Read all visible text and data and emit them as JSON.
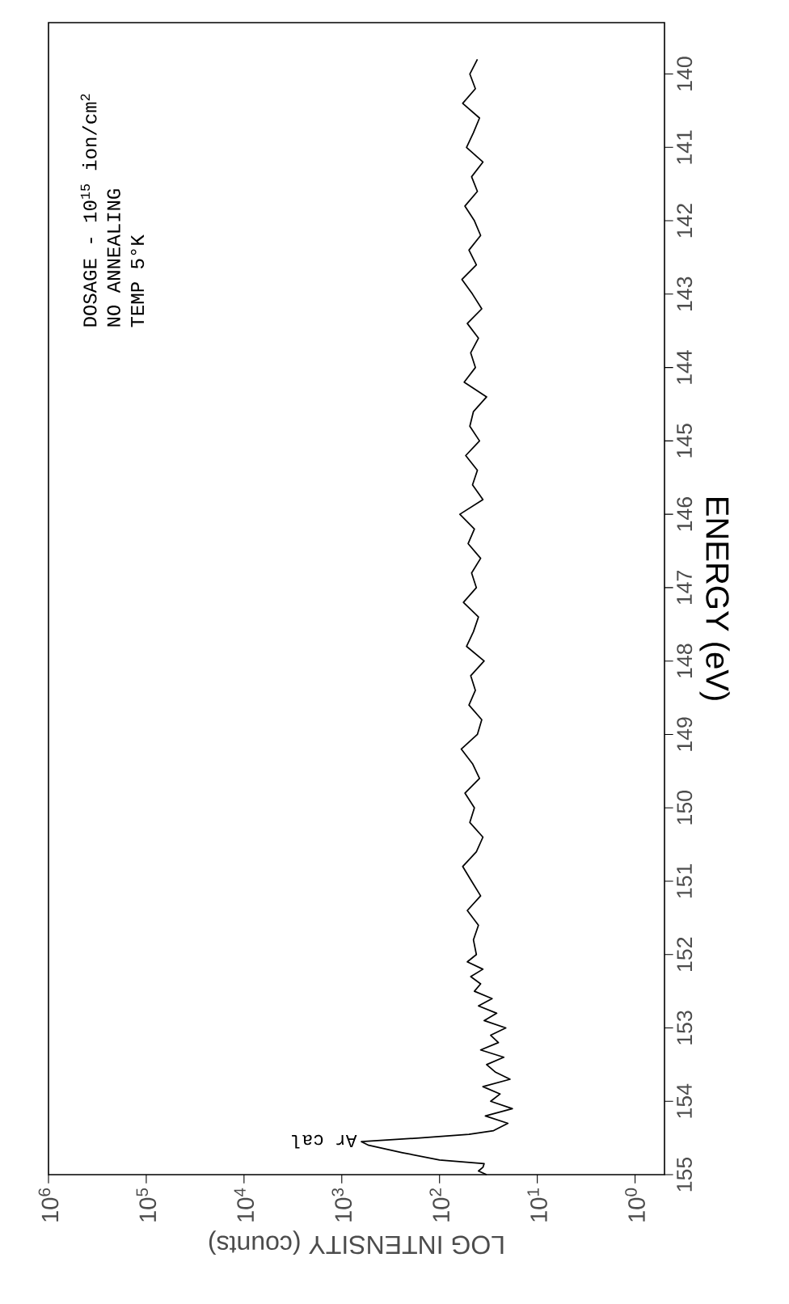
{
  "chart_data": {
    "type": "line",
    "xlabel": "LOG INTENSITY (counts)",
    "ylabel": "ENERGY (eV)",
    "annotations": [
      "DOSAGE - 10$^{15}$ ion/cm$^{2}$",
      "NO ANNEALING",
      "TEMP 5°K",
      {
        "text": "Ar cal",
        "x": 630,
        "y": 154.55
      }
    ],
    "log": "x",
    "xlim": [
      1000000,
      0.5
    ],
    "ylim": [
      155,
      139.3
    ],
    "yticks": [
      155,
      154,
      153,
      152,
      151,
      150,
      149,
      148,
      147,
      146,
      145,
      144,
      143,
      142,
      141,
      140
    ],
    "xticks": [
      {
        "value": 1000000,
        "label": "10$^{6}$"
      },
      {
        "value": 100000,
        "label": "10$^{5}$"
      },
      {
        "value": 10000,
        "label": "10$^{4}$"
      },
      {
        "value": 1000,
        "label": "10$^{3}$"
      },
      {
        "value": 100,
        "label": "10$^{2}$"
      },
      {
        "value": 10,
        "label": "10$^{1}$"
      },
      {
        "value": 1,
        "label": "10$^{0}$"
      }
    ],
    "series": [
      {
        "color": "#000000",
        "values": [
          155,
          154.95,
          154.9,
          154.85,
          154.8,
          154.7,
          154.6,
          154.55,
          154.5,
          154.45,
          154.4,
          154.3,
          154.2,
          154.1,
          154,
          153.9,
          153.8,
          153.7,
          153.6,
          153.5,
          153.4,
          153.3,
          153.2,
          153.1,
          153,
          152.9,
          152.8,
          152.7,
          152.6,
          152.5,
          152.4,
          152.3,
          152.2,
          152.1,
          152,
          151.8,
          151.6,
          151.4,
          151.2,
          151,
          150.8,
          150.6,
          150.4,
          150.2,
          150,
          149.8,
          149.6,
          149.4,
          149.2,
          149,
          148.8,
          148.6,
          148.4,
          148.2,
          148,
          147.8,
          147.6,
          147.4,
          147.2,
          147,
          146.8,
          146.6,
          146.4,
          146.2,
          146,
          145.8,
          145.6,
          145.4,
          145.2,
          145,
          144.8,
          144.6,
          144.4,
          144.2,
          144,
          143.8,
          143.6,
          143.4,
          143.2,
          143,
          142.8,
          142.6,
          142.4,
          142.2,
          142,
          141.8,
          141.6,
          141.4,
          141.2,
          141,
          140.8,
          140.6,
          140.4,
          140.2,
          140,
          139.8
        ],
        "x": [
          33,
          40,
          36,
          35,
          100,
          240,
          530,
          630,
          160,
          50,
          28,
          20,
          34,
          18,
          30,
          24,
          36,
          19,
          27,
          33,
          22,
          38,
          25,
          30,
          21,
          35,
          26,
          40,
          29,
          44,
          38,
          48,
          36,
          52,
          42,
          45,
          40,
          52,
          38,
          47,
          58,
          42,
          36,
          49,
          44,
          55,
          39,
          46,
          60,
          41,
          37,
          50,
          43,
          48,
          35,
          53,
          45,
          40,
          57,
          42,
          47,
          38,
          51,
          44,
          62,
          36,
          46,
          41,
          54,
          39,
          49,
          45,
          33,
          56,
          43,
          48,
          40,
          52,
          37,
          46,
          59,
          42,
          50,
          38,
          44,
          55,
          41,
          47,
          36,
          53,
          45,
          39,
          58,
          43,
          49,
          41
        ]
      }
    ],
    "marker": "none",
    "line_style": "solid",
    "grid": false
  }
}
